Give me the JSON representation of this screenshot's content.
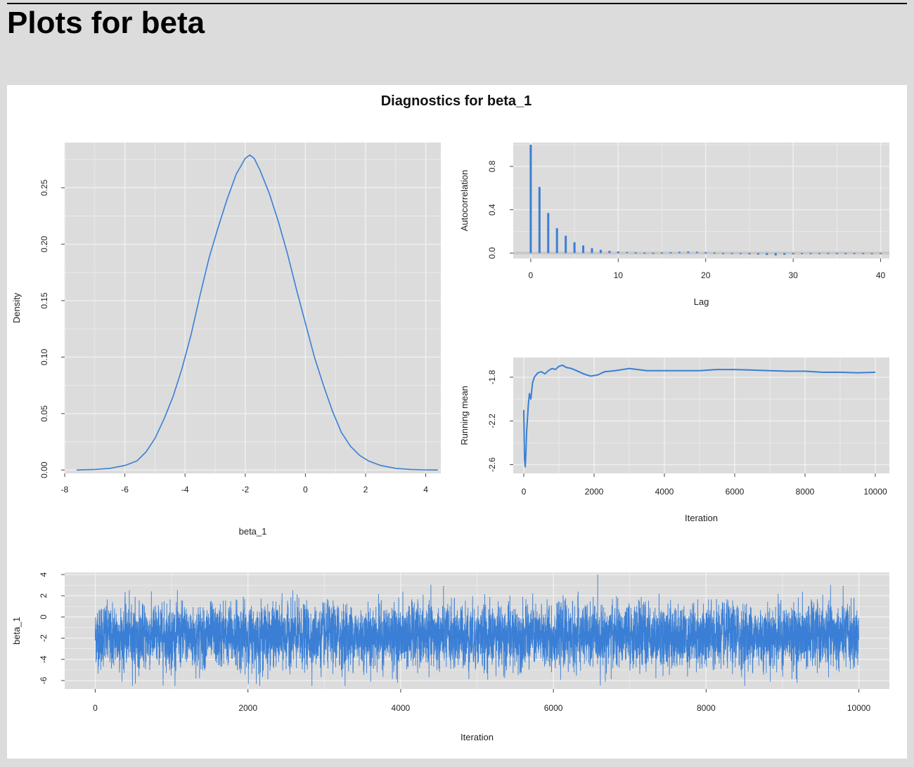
{
  "page": {
    "heading": "Plots for beta"
  },
  "colors": {
    "page_background": "#dcdcdc",
    "panel_background": "#ffffff",
    "plot_background": "#dcdcdc",
    "grid": "#f0f0f0",
    "series": "#3a7fd5",
    "text": "#222222"
  },
  "figure": {
    "title": "Diagnostics for beta_1"
  },
  "chart_data": [
    {
      "id": "density",
      "type": "line",
      "xlabel": "beta_1",
      "ylabel": "Density",
      "xlim": [
        -8,
        4.5
      ],
      "ylim": [
        -0.003,
        0.29
      ],
      "xticks": [
        -8,
        -6,
        -4,
        -2,
        0,
        2,
        4
      ],
      "xtick_labels": [
        "-8",
        "-6",
        "-4",
        "-2",
        "0",
        "2",
        "4"
      ],
      "yticks": [
        0,
        0.05,
        0.1,
        0.15,
        0.2,
        0.25
      ],
      "ytick_labels": [
        "0.00",
        "0.05",
        "0.10",
        "0.15",
        "0.20",
        "0.25"
      ],
      "grid": true,
      "series": [
        {
          "x": [
            -7.6,
            -7.0,
            -6.5,
            -6.0,
            -5.6,
            -5.3,
            -5.0,
            -4.7,
            -4.4,
            -4.1,
            -3.8,
            -3.5,
            -3.2,
            -2.9,
            -2.6,
            -2.3,
            -2.0,
            -1.85,
            -1.7,
            -1.5,
            -1.2,
            -0.9,
            -0.6,
            -0.3,
            0.0,
            0.3,
            0.6,
            0.9,
            1.2,
            1.5,
            1.8,
            2.1,
            2.5,
            3.0,
            3.5,
            4.0,
            4.4
          ],
          "y": [
            0.0,
            0.0005,
            0.0015,
            0.004,
            0.008,
            0.016,
            0.028,
            0.045,
            0.065,
            0.09,
            0.12,
            0.155,
            0.188,
            0.215,
            0.24,
            0.262,
            0.276,
            0.279,
            0.276,
            0.265,
            0.245,
            0.22,
            0.192,
            0.16,
            0.13,
            0.1,
            0.075,
            0.052,
            0.033,
            0.021,
            0.013,
            0.008,
            0.004,
            0.0015,
            0.0005,
            0.0001,
            0.0
          ]
        }
      ]
    },
    {
      "id": "autocorrelation",
      "type": "bar",
      "xlabel": "Lag",
      "ylabel": "Autocorrelation",
      "xlim": [
        -2,
        41
      ],
      "ylim": [
        -0.05,
        1.02
      ],
      "xticks": [
        0,
        10,
        20,
        30,
        40
      ],
      "xtick_labels": [
        "0",
        "10",
        "20",
        "30",
        "40"
      ],
      "yticks": [
        0.0,
        0.4,
        0.8
      ],
      "ytick_labels": [
        "0.0",
        "0.4",
        "0.8"
      ],
      "grid": true,
      "lags": [
        0,
        1,
        2,
        3,
        4,
        5,
        6,
        7,
        8,
        9,
        10,
        11,
        12,
        13,
        14,
        15,
        16,
        17,
        18,
        19,
        20,
        21,
        22,
        23,
        24,
        25,
        26,
        27,
        28,
        29,
        30,
        31,
        32,
        33,
        34,
        35,
        36,
        37,
        38,
        39,
        40
      ],
      "values": [
        1.0,
        0.61,
        0.37,
        0.23,
        0.16,
        0.1,
        0.07,
        0.045,
        0.03,
        0.02,
        0.015,
        0.01,
        0.006,
        0.004,
        0.003,
        0.005,
        0.008,
        0.012,
        0.014,
        0.012,
        0.008,
        0.004,
        0.0,
        -0.005,
        -0.008,
        -0.012,
        -0.014,
        -0.018,
        -0.022,
        -0.016,
        -0.012,
        -0.01,
        -0.008,
        -0.006,
        -0.004,
        -0.003,
        -0.002,
        -0.002,
        -0.001,
        0.0,
        0.0
      ]
    },
    {
      "id": "running-mean",
      "type": "line",
      "xlabel": "Iteration",
      "ylabel": "Running mean",
      "xlim": [
        -300,
        10400
      ],
      "ylim": [
        -2.68,
        -1.62
      ],
      "xticks": [
        0,
        2000,
        4000,
        6000,
        8000,
        10000
      ],
      "xtick_labels": [
        "0",
        "2000",
        "4000",
        "6000",
        "8000",
        "10000"
      ],
      "yticks": [
        -2.6,
        -2.2,
        -1.8
      ],
      "ytick_labels": [
        "-2.6",
        "-2.2",
        "-1.8"
      ],
      "grid": true,
      "series": [
        {
          "x": [
            0,
            20,
            40,
            60,
            80,
            100,
            130,
            160,
            200,
            250,
            300,
            350,
            400,
            500,
            600,
            700,
            800,
            900,
            1000,
            1100,
            1200,
            1350,
            1500,
            1700,
            1900,
            2100,
            2300,
            2600,
            3000,
            3500,
            4000,
            4500,
            5000,
            5500,
            6000,
            6500,
            7000,
            7500,
            8000,
            8500,
            9000,
            9500,
            10000
          ],
          "y": [
            -2.1,
            -2.55,
            -2.62,
            -2.5,
            -2.3,
            -2.2,
            -2.05,
            -1.95,
            -2.0,
            -1.85,
            -1.8,
            -1.78,
            -1.76,
            -1.75,
            -1.77,
            -1.74,
            -1.72,
            -1.73,
            -1.7,
            -1.69,
            -1.71,
            -1.72,
            -1.74,
            -1.77,
            -1.79,
            -1.78,
            -1.75,
            -1.74,
            -1.72,
            -1.74,
            -1.74,
            -1.74,
            -1.74,
            -1.73,
            -1.73,
            -1.735,
            -1.74,
            -1.745,
            -1.745,
            -1.755,
            -1.755,
            -1.76,
            -1.755
          ]
        }
      ]
    },
    {
      "id": "trace",
      "type": "line",
      "xlabel": "Iteration",
      "ylabel": "beta_1",
      "xlim": [
        -400,
        10400
      ],
      "ylim": [
        -6.8,
        4.2
      ],
      "xticks": [
        0,
        2000,
        4000,
        6000,
        8000,
        10000
      ],
      "xtick_labels": [
        "0",
        "2000",
        "4000",
        "6000",
        "8000",
        "10000"
      ],
      "yticks": [
        -6,
        -4,
        -2,
        0,
        2,
        4
      ],
      "ytick_labels": [
        "-6",
        "-4",
        "-2",
        "0",
        "2",
        "4"
      ],
      "grid": true,
      "series": [
        {
          "iterations": 10000,
          "mean": -1.8,
          "sd": 1.4
        }
      ]
    }
  ]
}
